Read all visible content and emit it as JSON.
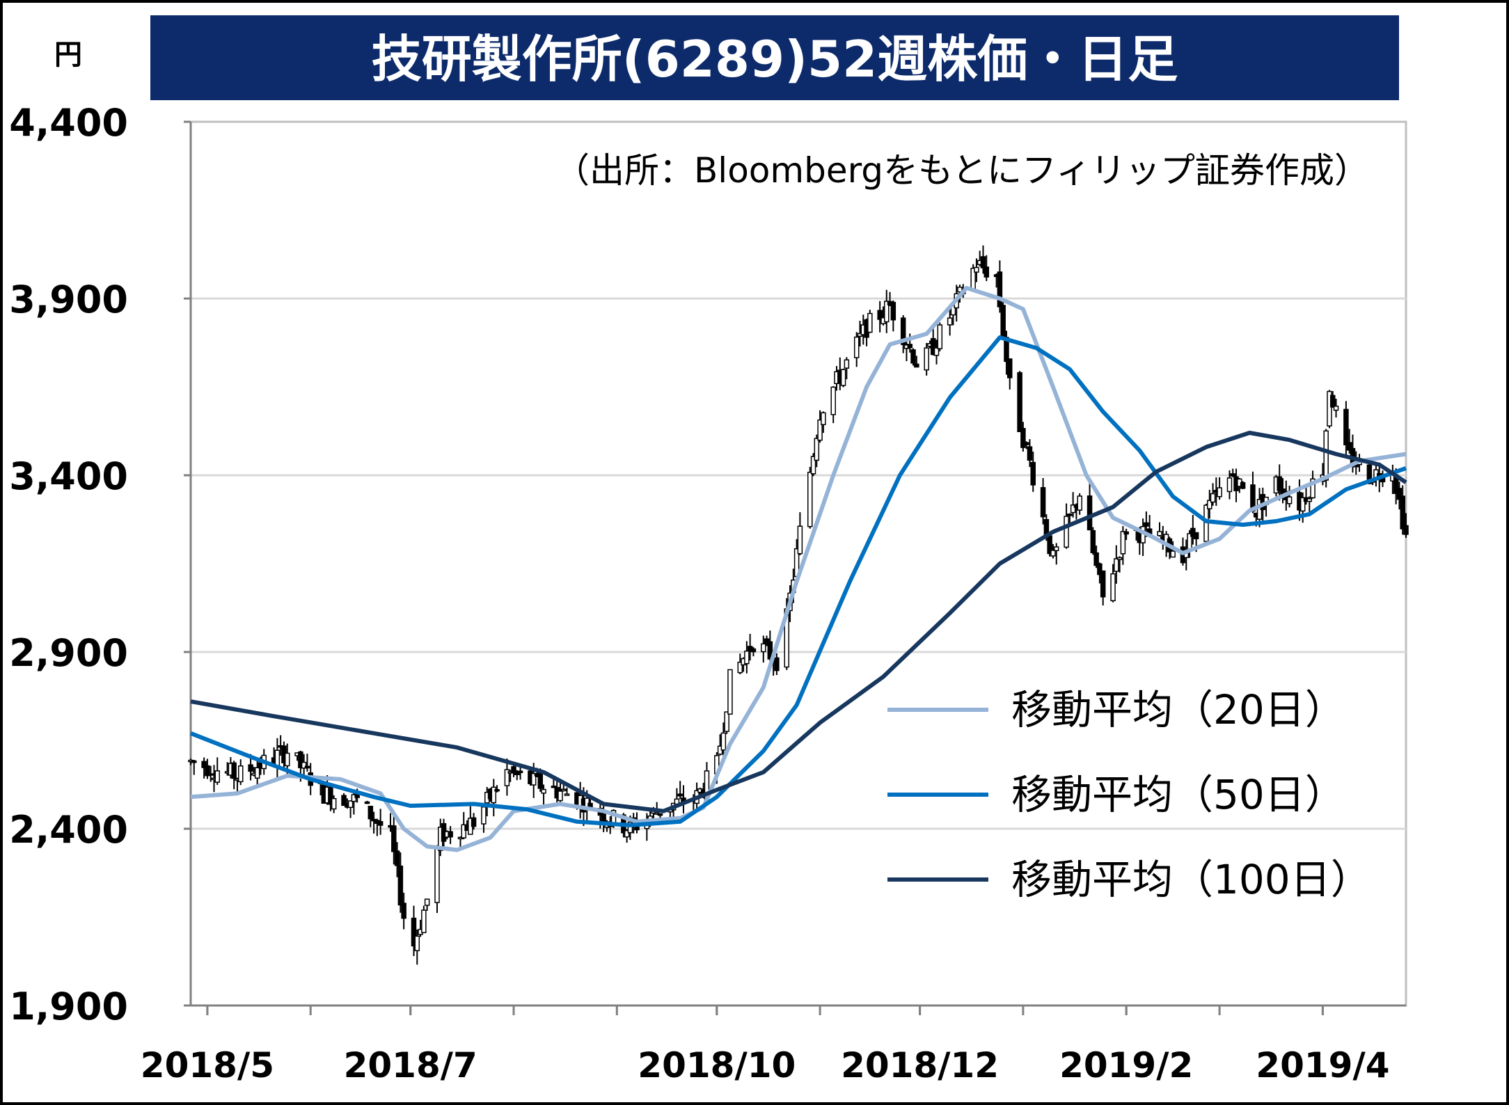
{
  "chart_data": {
    "type": "candlestick",
    "title": "技研製作所(6289)52週株価・日足",
    "unit_label": "円",
    "source_note": "（出所：Bloombergをもとにフィリップ証券作成）",
    "ylim": [
      1900,
      4400
    ],
    "y_ticks": [
      {
        "value": 4400,
        "label": "4,400"
      },
      {
        "value": 3900,
        "label": "3,900"
      },
      {
        "value": 3400,
        "label": "3,400"
      },
      {
        "value": 2900,
        "label": "2,900"
      },
      {
        "value": 2400,
        "label": "2,400"
      },
      {
        "value": 1900,
        "label": "1,900"
      }
    ],
    "x_ticks": [
      {
        "label": "2018/5",
        "date": "2018-05-01"
      },
      {
        "label": "2018/7",
        "date": "2018-07-01"
      },
      {
        "label": "2018/10",
        "date": "2018-10-01"
      },
      {
        "label": "2018/12",
        "date": "2018-12-01"
      },
      {
        "label": "2019/2",
        "date": "2019-02-01"
      },
      {
        "label": "2019/4",
        "date": "2019-04-01"
      }
    ],
    "x_range": [
      "2018-04-26",
      "2019-04-26"
    ],
    "grid": "horizontal",
    "legend_position": "bottom-right",
    "series": [
      {
        "name": "移動平均（20日）",
        "color": "#95b3d7",
        "points": [
          [
            "2018-04-26",
            2490
          ],
          [
            "2018-05-10",
            2500
          ],
          [
            "2018-05-25",
            2550
          ],
          [
            "2018-06-10",
            2540
          ],
          [
            "2018-06-22",
            2500
          ],
          [
            "2018-06-29",
            2400
          ],
          [
            "2018-07-06",
            2350
          ],
          [
            "2018-07-15",
            2340
          ],
          [
            "2018-07-25",
            2375
          ],
          [
            "2018-08-01",
            2450
          ],
          [
            "2018-08-15",
            2470
          ],
          [
            "2018-08-28",
            2450
          ],
          [
            "2018-09-07",
            2420
          ],
          [
            "2018-09-20",
            2430
          ],
          [
            "2018-09-27",
            2460
          ],
          [
            "2018-10-05",
            2640
          ],
          [
            "2018-10-15",
            2800
          ],
          [
            "2018-10-25",
            3100
          ],
          [
            "2018-11-05",
            3400
          ],
          [
            "2018-11-15",
            3650
          ],
          [
            "2018-11-22",
            3770
          ],
          [
            "2018-12-03",
            3800
          ],
          [
            "2018-12-15",
            3930
          ],
          [
            "2018-12-25",
            3900
          ],
          [
            "2019-01-01",
            3870
          ],
          [
            "2019-01-10",
            3650
          ],
          [
            "2019-01-20",
            3400
          ],
          [
            "2019-01-28",
            3280
          ],
          [
            "2019-02-08",
            3230
          ],
          [
            "2019-02-18",
            3180
          ],
          [
            "2019-03-01",
            3220
          ],
          [
            "2019-03-10",
            3300
          ],
          [
            "2019-03-22",
            3350
          ],
          [
            "2019-04-01",
            3390
          ],
          [
            "2019-04-12",
            3440
          ],
          [
            "2019-04-26",
            3460
          ]
        ]
      },
      {
        "name": "移動平均（50日）",
        "color": "#0070c0",
        "points": [
          [
            "2018-04-26",
            2670
          ],
          [
            "2018-05-15",
            2600
          ],
          [
            "2018-06-01",
            2540
          ],
          [
            "2018-06-20",
            2490
          ],
          [
            "2018-07-01",
            2465
          ],
          [
            "2018-07-20",
            2470
          ],
          [
            "2018-08-05",
            2455
          ],
          [
            "2018-08-20",
            2420
          ],
          [
            "2018-09-05",
            2410
          ],
          [
            "2018-09-20",
            2420
          ],
          [
            "2018-10-01",
            2490
          ],
          [
            "2018-10-15",
            2620
          ],
          [
            "2018-10-25",
            2750
          ],
          [
            "2018-11-10",
            3100
          ],
          [
            "2018-11-25",
            3400
          ],
          [
            "2018-12-10",
            3620
          ],
          [
            "2018-12-25",
            3790
          ],
          [
            "2019-01-05",
            3760
          ],
          [
            "2019-01-15",
            3700
          ],
          [
            "2019-01-25",
            3580
          ],
          [
            "2019-02-05",
            3470
          ],
          [
            "2019-02-15",
            3340
          ],
          [
            "2019-02-25",
            3270
          ],
          [
            "2019-03-08",
            3260
          ],
          [
            "2019-03-18",
            3270
          ],
          [
            "2019-03-28",
            3290
          ],
          [
            "2019-04-08",
            3360
          ],
          [
            "2019-04-26",
            3420
          ]
        ]
      },
      {
        "name": "移動平均（100日）",
        "color": "#17375e",
        "points": [
          [
            "2018-04-26",
            2760
          ],
          [
            "2018-05-20",
            2720
          ],
          [
            "2018-06-20",
            2670
          ],
          [
            "2018-07-15",
            2630
          ],
          [
            "2018-08-10",
            2560
          ],
          [
            "2018-08-28",
            2470
          ],
          [
            "2018-09-15",
            2450
          ],
          [
            "2018-10-01",
            2510
          ],
          [
            "2018-10-15",
            2560
          ],
          [
            "2018-11-01",
            2700
          ],
          [
            "2018-11-20",
            2830
          ],
          [
            "2018-12-10",
            3010
          ],
          [
            "2018-12-25",
            3150
          ],
          [
            "2019-01-10",
            3240
          ],
          [
            "2019-01-28",
            3310
          ],
          [
            "2019-02-10",
            3410
          ],
          [
            "2019-02-25",
            3480
          ],
          [
            "2019-03-10",
            3520
          ],
          [
            "2019-03-22",
            3500
          ],
          [
            "2019-04-05",
            3460
          ],
          [
            "2019-04-18",
            3430
          ],
          [
            "2019-04-26",
            3380
          ]
        ]
      }
    ],
    "price_path": [
      [
        "2018-04-26",
        2590
      ],
      [
        "2018-05-10",
        2550
      ],
      [
        "2018-05-25",
        2620
      ],
      [
        "2018-06-05",
        2500
      ],
      [
        "2018-06-15",
        2480
      ],
      [
        "2018-06-25",
        2380
      ],
      [
        "2018-07-01",
        2040
      ],
      [
        "2018-07-06",
        2200
      ],
      [
        "2018-07-10",
        2380
      ],
      [
        "2018-07-20",
        2420
      ],
      [
        "2018-07-30",
        2560
      ],
      [
        "2018-08-10",
        2520
      ],
      [
        "2018-08-20",
        2490
      ],
      [
        "2018-08-28",
        2440
      ],
      [
        "2018-09-05",
        2400
      ],
      [
        "2018-09-15",
        2460
      ],
      [
        "2018-09-25",
        2490
      ],
      [
        "2018-10-01",
        2580
      ],
      [
        "2018-10-05",
        2820
      ],
      [
        "2018-10-12",
        2930
      ],
      [
        "2018-10-20",
        2870
      ],
      [
        "2018-10-27",
        3300
      ],
      [
        "2018-11-01",
        3580
      ],
      [
        "2018-11-08",
        3700
      ],
      [
        "2018-11-15",
        3820
      ],
      [
        "2018-11-22",
        3880
      ],
      [
        "2018-12-01",
        3700
      ],
      [
        "2018-12-10",
        3850
      ],
      [
        "2018-12-18",
        4000
      ],
      [
        "2018-12-24",
        3960
      ],
      [
        "2018-12-28",
        3650
      ],
      [
        "2019-01-04",
        3400
      ],
      [
        "2019-01-10",
        3160
      ],
      [
        "2019-01-18",
        3350
      ],
      [
        "2019-01-25",
        3050
      ],
      [
        "2019-02-01",
        3250
      ],
      [
        "2019-02-08",
        3230
      ],
      [
        "2019-02-18",
        3180
      ],
      [
        "2019-02-25",
        3300
      ],
      [
        "2019-03-05",
        3400
      ],
      [
        "2019-03-12",
        3300
      ],
      [
        "2019-03-18",
        3380
      ],
      [
        "2019-03-25",
        3320
      ],
      [
        "2019-04-01",
        3420
      ],
      [
        "2019-04-03",
        3650
      ],
      [
        "2019-04-08",
        3460
      ],
      [
        "2019-04-15",
        3400
      ],
      [
        "2019-04-22",
        3420
      ],
      [
        "2019-04-26",
        3230
      ]
    ]
  }
}
